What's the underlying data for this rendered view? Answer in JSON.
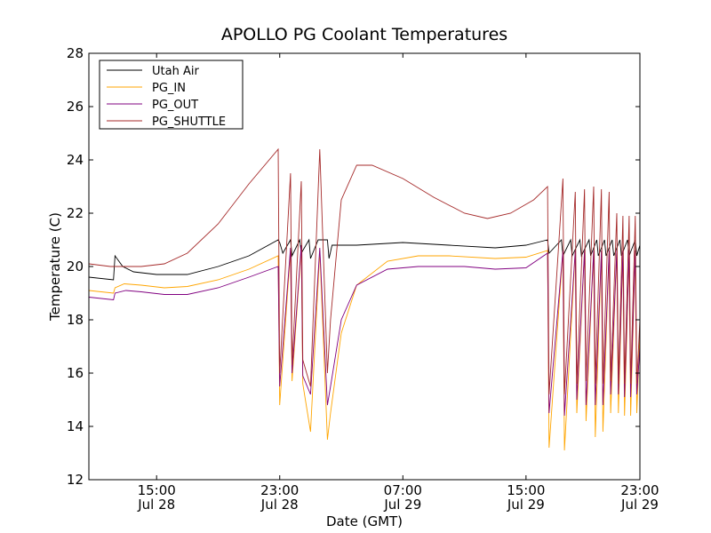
{
  "chart_data": {
    "type": "line",
    "title": "APOLLO PG Coolant Temperatures",
    "xlabel": "Date (GMT)",
    "ylabel": "Temperature (C)",
    "xlim": [
      10.6,
      46.4
    ],
    "ylim": [
      12,
      28
    ],
    "x_unit": "hours since 2024-07-28 00:00 GMT (year not shown)",
    "yticks": [
      12,
      14,
      16,
      18,
      20,
      22,
      24,
      26,
      28
    ],
    "xticks": [
      {
        "value": 15,
        "time": "15:00",
        "date": "Jul 28"
      },
      {
        "value": 23,
        "time": "23:00",
        "date": "Jul 28"
      },
      {
        "value": 31,
        "time": "07:00",
        "date": "Jul 29"
      },
      {
        "value": 39,
        "time": "15:00",
        "date": "Jul 29"
      },
      {
        "value": 47,
        "time": "23:00",
        "date": "Jul 29"
      }
    ],
    "legend_position": "top-left",
    "series": [
      {
        "name": "Utah Air",
        "color": "#000000",
        "points": [
          [
            10.6,
            19.6
          ],
          [
            12.2,
            19.5
          ],
          [
            12.3,
            20.4
          ],
          [
            12.8,
            20.0
          ],
          [
            13.5,
            19.8
          ],
          [
            15,
            19.7
          ],
          [
            17,
            19.7
          ],
          [
            19,
            20.0
          ],
          [
            21,
            20.4
          ],
          [
            22.9,
            21.0
          ],
          [
            23,
            20.9
          ],
          [
            23.2,
            20.5
          ],
          [
            23.7,
            21.0
          ],
          [
            23.8,
            20.4
          ],
          [
            24.3,
            21.0
          ],
          [
            24.4,
            20.5
          ],
          [
            24.9,
            21.0
          ],
          [
            25.0,
            20.3
          ],
          [
            25.5,
            21.0
          ],
          [
            26.1,
            21.0
          ],
          [
            26.2,
            20.3
          ],
          [
            26.4,
            20.8
          ],
          [
            28,
            20.8
          ],
          [
            31,
            20.9
          ],
          [
            34,
            20.8
          ],
          [
            37,
            20.7
          ],
          [
            39,
            20.8
          ],
          [
            40.4,
            21.0
          ],
          [
            40.5,
            20.5
          ],
          [
            41.3,
            21.0
          ],
          [
            41.4,
            20.4
          ],
          [
            41.9,
            21.0
          ],
          [
            42.0,
            20.4
          ],
          [
            42.5,
            21.0
          ],
          [
            42.6,
            20.4
          ],
          [
            43.1,
            21.0
          ],
          [
            43.2,
            20.4
          ],
          [
            43.6,
            21.0
          ],
          [
            43.7,
            20.4
          ],
          [
            44.1,
            21.0
          ],
          [
            44.2,
            20.4
          ],
          [
            44.6,
            21.0
          ],
          [
            44.7,
            20.4
          ],
          [
            45.1,
            21.0
          ],
          [
            45.2,
            20.4
          ],
          [
            45.6,
            21.0
          ],
          [
            45.7,
            20.4
          ],
          [
            46.1,
            21.0
          ],
          [
            46.2,
            20.4
          ],
          [
            46.4,
            20.8
          ]
        ]
      },
      {
        "name": "PG_IN",
        "color": "#ffa500",
        "points": [
          [
            10.6,
            19.1
          ],
          [
            12.2,
            19.0
          ],
          [
            12.3,
            19.2
          ],
          [
            12.9,
            19.35
          ],
          [
            14,
            19.3
          ],
          [
            15.5,
            19.2
          ],
          [
            17,
            19.25
          ],
          [
            19,
            19.5
          ],
          [
            21,
            19.9
          ],
          [
            22.9,
            20.4
          ],
          [
            23.0,
            14.8
          ],
          [
            23.7,
            20.6
          ],
          [
            23.8,
            15.7
          ],
          [
            24.4,
            20.7
          ],
          [
            24.5,
            15.6
          ],
          [
            25.0,
            13.8
          ],
          [
            25.6,
            20.6
          ],
          [
            26.1,
            13.5
          ],
          [
            26.3,
            14.5
          ],
          [
            27,
            17.5
          ],
          [
            28,
            19.3
          ],
          [
            30,
            20.2
          ],
          [
            32,
            20.4
          ],
          [
            34,
            20.4
          ],
          [
            37,
            20.3
          ],
          [
            39,
            20.35
          ],
          [
            40.4,
            20.6
          ],
          [
            40.5,
            13.2
          ],
          [
            41.4,
            20.6
          ],
          [
            41.5,
            13.1
          ],
          [
            42.2,
            20.6
          ],
          [
            42.3,
            14.5
          ],
          [
            42.8,
            20.6
          ],
          [
            42.9,
            14.2
          ],
          [
            43.4,
            20.6
          ],
          [
            43.5,
            13.6
          ],
          [
            43.9,
            20.6
          ],
          [
            44.0,
            13.8
          ],
          [
            44.4,
            20.6
          ],
          [
            44.5,
            14.5
          ],
          [
            44.9,
            20.6
          ],
          [
            45.0,
            14.5
          ],
          [
            45.3,
            20.6
          ],
          [
            45.4,
            14.4
          ],
          [
            45.7,
            20.6
          ],
          [
            45.8,
            14.4
          ],
          [
            46.1,
            20.6
          ],
          [
            46.2,
            14.5
          ],
          [
            46.4,
            17.5
          ]
        ]
      },
      {
        "name": "PG_OUT",
        "color": "#800080",
        "points": [
          [
            10.6,
            18.85
          ],
          [
            12.2,
            18.75
          ],
          [
            12.3,
            19.0
          ],
          [
            13,
            19.1
          ],
          [
            14,
            19.05
          ],
          [
            15.5,
            18.95
          ],
          [
            17,
            18.95
          ],
          [
            19,
            19.2
          ],
          [
            21,
            19.6
          ],
          [
            22.9,
            20.0
          ],
          [
            23.0,
            15.5
          ],
          [
            23.7,
            20.7
          ],
          [
            23.8,
            16.0
          ],
          [
            24.4,
            20.8
          ],
          [
            24.5,
            15.9
          ],
          [
            25.0,
            15.2
          ],
          [
            25.6,
            20.7
          ],
          [
            26.1,
            14.8
          ],
          [
            26.3,
            15.5
          ],
          [
            27,
            18.0
          ],
          [
            28,
            19.3
          ],
          [
            30,
            19.9
          ],
          [
            32,
            20.0
          ],
          [
            35,
            20.0
          ],
          [
            37,
            19.9
          ],
          [
            39,
            19.95
          ],
          [
            40.4,
            20.5
          ],
          [
            40.5,
            14.5
          ],
          [
            41.4,
            20.6
          ],
          [
            41.5,
            14.4
          ],
          [
            42.2,
            20.6
          ],
          [
            42.3,
            15.0
          ],
          [
            42.8,
            20.6
          ],
          [
            42.9,
            14.8
          ],
          [
            43.4,
            20.6
          ],
          [
            43.5,
            14.8
          ],
          [
            43.9,
            20.6
          ],
          [
            44.0,
            14.8
          ],
          [
            44.4,
            20.6
          ],
          [
            44.5,
            15.2
          ],
          [
            44.9,
            20.6
          ],
          [
            45.0,
            15.2
          ],
          [
            45.3,
            20.6
          ],
          [
            45.4,
            15.1
          ],
          [
            45.7,
            20.6
          ],
          [
            45.8,
            15.1
          ],
          [
            46.1,
            20.6
          ],
          [
            46.2,
            15.2
          ],
          [
            46.4,
            17.0
          ]
        ]
      },
      {
        "name": "PG_SHUTTLE",
        "color": "#a52a2a",
        "points": [
          [
            10.6,
            20.1
          ],
          [
            12,
            20.0
          ],
          [
            13,
            20.0
          ],
          [
            14,
            20.0
          ],
          [
            15.5,
            20.1
          ],
          [
            17,
            20.5
          ],
          [
            19,
            21.6
          ],
          [
            21,
            23.1
          ],
          [
            22.9,
            24.4
          ],
          [
            23.0,
            16.0
          ],
          [
            23.7,
            23.5
          ],
          [
            23.8,
            16.3
          ],
          [
            24.4,
            23.2
          ],
          [
            24.5,
            16.5
          ],
          [
            25.0,
            15.5
          ],
          [
            25.6,
            24.4
          ],
          [
            26.1,
            16.0
          ],
          [
            26.3,
            18.0
          ],
          [
            27,
            22.5
          ],
          [
            28,
            23.8
          ],
          [
            29,
            23.8
          ],
          [
            31,
            23.3
          ],
          [
            33,
            22.6
          ],
          [
            35,
            22.0
          ],
          [
            36.5,
            21.8
          ],
          [
            38,
            22.0
          ],
          [
            39.5,
            22.5
          ],
          [
            40.4,
            23.0
          ],
          [
            40.5,
            15.2
          ],
          [
            41.4,
            23.3
          ],
          [
            41.5,
            15.2
          ],
          [
            42.2,
            22.8
          ],
          [
            42.3,
            15.6
          ],
          [
            42.8,
            22.9
          ],
          [
            42.9,
            15.7
          ],
          [
            43.4,
            23.0
          ],
          [
            43.5,
            15.6
          ],
          [
            43.9,
            22.9
          ],
          [
            44.0,
            15.6
          ],
          [
            44.4,
            22.8
          ],
          [
            44.5,
            15.7
          ],
          [
            44.9,
            22.0
          ],
          [
            45.0,
            15.6
          ],
          [
            45.3,
            21.9
          ],
          [
            45.4,
            15.6
          ],
          [
            45.7,
            21.9
          ],
          [
            45.8,
            15.6
          ],
          [
            46.1,
            21.9
          ],
          [
            46.2,
            15.6
          ],
          [
            46.4,
            18.0
          ]
        ]
      }
    ]
  }
}
